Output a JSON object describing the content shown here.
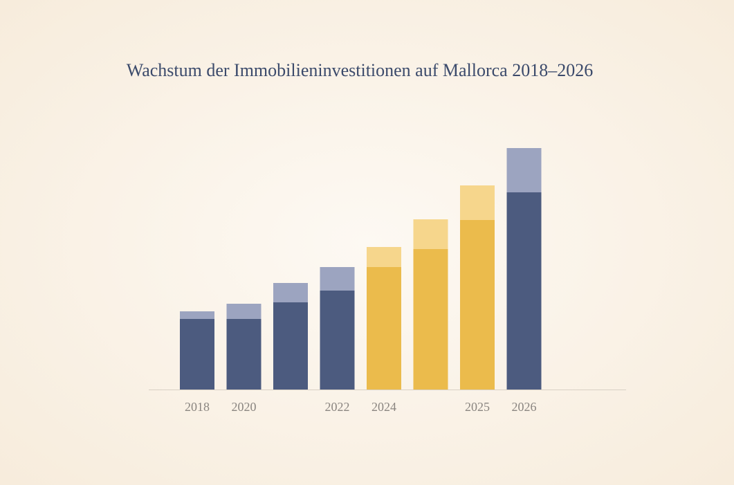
{
  "chart_data": {
    "type": "stacked-bar",
    "title": "Wachstum der Immobilieninvestitionen auf Mallorca 2018–2026",
    "categories": [
      "2018",
      "2020",
      null,
      "2022",
      "2024",
      null,
      "2025",
      "2026"
    ],
    "series": [
      {
        "colors": [
          "#4c5b7f",
          "#4c5b7f",
          "#4c5b7f",
          "#4c5b7f",
          "#ebbb4c",
          "#ebbb4c",
          "#ebbb4c",
          "#4c5b7f"
        ],
        "values": [
          102,
          102,
          126,
          143,
          177,
          203,
          245,
          285
        ]
      },
      {
        "colors": [
          "#9ca4c0",
          "#9ca4c0",
          "#9ca4c0",
          "#9ca4c0",
          "#f6d68c",
          "#f6d68c",
          "#f6d68c",
          "#9ca4c0"
        ],
        "values": [
          11,
          22,
          28,
          34,
          29,
          43,
          50,
          64
        ]
      }
    ]
  }
}
